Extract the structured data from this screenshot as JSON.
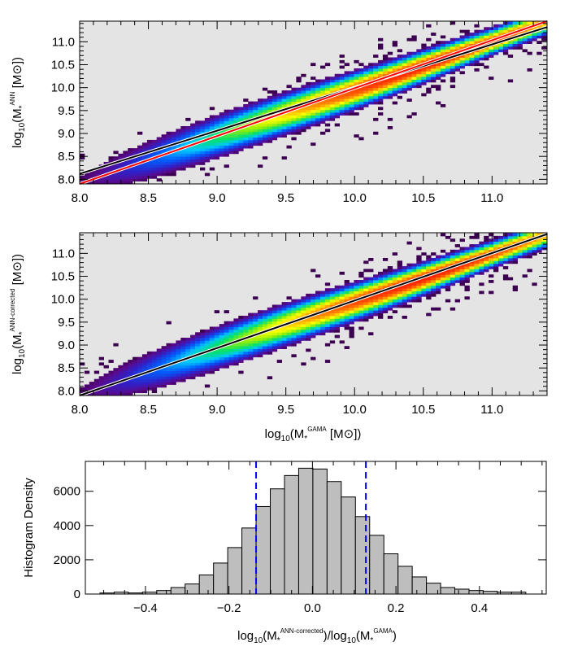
{
  "chart_data": [
    {
      "type": "heatmap",
      "xlim": [
        8.0,
        11.4
      ],
      "ylim": [
        7.9,
        11.45
      ],
      "xticks": [
        "8.0",
        "8.5",
        "9.0",
        "9.5",
        "10.0",
        "10.5",
        "11.0"
      ],
      "yticks": [
        "8.0",
        "8.5",
        "9.0",
        "9.5",
        "10.0",
        "10.5",
        "11.0"
      ],
      "ylabel": {
        "pre": "log",
        "sub": "10",
        "mid": "(M",
        "star": "*",
        "sup": "ANN",
        "post": " [M",
        "sun": "⊙",
        "end": "])"
      },
      "xlabel": null,
      "colormap": "rainbow",
      "background": "#e4e4e4",
      "lines": [
        {
          "color": "#000000",
          "points": [
            [
              8.0,
              8.12
            ],
            [
              11.4,
              11.32
            ]
          ]
        },
        {
          "color": "#ff0000",
          "points": [
            [
              8.0,
              7.9
            ],
            [
              11.4,
              11.45
            ]
          ]
        }
      ]
    },
    {
      "type": "heatmap",
      "xlim": [
        8.0,
        11.4
      ],
      "ylim": [
        7.9,
        11.45
      ],
      "xticks": [
        "8.0",
        "8.5",
        "9.0",
        "9.5",
        "10.0",
        "10.5",
        "11.0"
      ],
      "yticks": [
        "8.0",
        "8.5",
        "9.0",
        "9.5",
        "10.0",
        "10.5",
        "11.0"
      ],
      "ylabel": {
        "pre": "log",
        "sub": "10",
        "mid": "(M",
        "star": "*",
        "sup": "ANN-corrected",
        "post": " [M",
        "sun": "⊙",
        "end": "])"
      },
      "xlabel": {
        "pre": "log",
        "sub": "10",
        "mid": "(M",
        "star": "*",
        "sup": "GAMA",
        "post": " [M",
        "sun": "⊙",
        "end": "])"
      },
      "colormap": "rainbow",
      "background": "#e4e4e4",
      "lines": [
        {
          "color": "#000000",
          "points": [
            [
              8.0,
              7.9
            ],
            [
              11.4,
              11.42
            ]
          ]
        }
      ]
    },
    {
      "type": "bar",
      "ylabel": "Histogram Density",
      "xlabel": {
        "pre": "log",
        "sub": "10",
        "mid": "(M",
        "star": "*",
        "sup": "ANN-corrected",
        "post": ")/log",
        "sub2": "10",
        "mid2": "(M",
        "star2": "*",
        "sup2": "GAMA",
        "end": ")"
      },
      "xlim": [
        -0.544,
        0.56
      ],
      "ylim": [
        0,
        7746
      ],
      "xticks": [
        "-0.4",
        "-0.2",
        "0.0",
        "0.2",
        "0.4"
      ],
      "yticks": [
        "0",
        "2000",
        "4000",
        "6000"
      ],
      "bin_start": -0.509,
      "bin_width": 0.034,
      "values": [
        60,
        111,
        63,
        111,
        206,
        381,
        587,
        1111,
        1810,
        2714,
        3857,
        5111,
        6143,
        6921,
        7349,
        7302,
        6571,
        5667,
        4524,
        3429,
        2349,
        1619,
        1000,
        635,
        381,
        286,
        206,
        159,
        111,
        111
      ],
      "bar_color": "#bebebe",
      "vlines": [
        {
          "x": -0.135,
          "color": "#0000ff",
          "style": "dashed"
        },
        {
          "x": 0.128,
          "color": "#0000ff",
          "style": "dashed"
        }
      ]
    }
  ]
}
